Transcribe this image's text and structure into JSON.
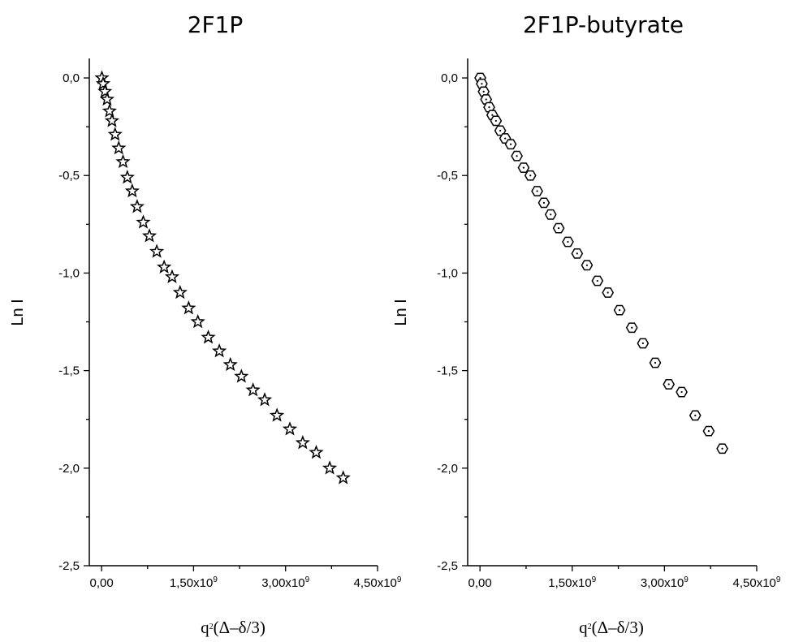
{
  "chart_data": [
    {
      "type": "scatter",
      "title": "2F1P",
      "xlabel_base": "q",
      "xlabel_sup": "2",
      "xlabel_rest": "(Δ–δ/3)",
      "ylabel": "Ln I",
      "xlim": [
        -200000000.0,
        4500000000.0
      ],
      "ylim": [
        -2.5,
        0.1
      ],
      "marker": "star",
      "x_ticks": [
        {
          "value": 0,
          "mantissa": "0,00",
          "exp": ""
        },
        {
          "value": 1500000000.0,
          "mantissa": "1,50x10",
          "exp": "9"
        },
        {
          "value": 3000000000.0,
          "mantissa": "3,00x10",
          "exp": "9"
        },
        {
          "value": 4500000000.0,
          "mantissa": "4,50x10",
          "exp": "9"
        }
      ],
      "y_ticks": [
        {
          "value": 0.0,
          "label": "0,0"
        },
        {
          "value": -0.5,
          "label": "-0,5"
        },
        {
          "value": -1.0,
          "label": "-1,0"
        },
        {
          "value": -1.5,
          "label": "-1,5"
        },
        {
          "value": -2.0,
          "label": "-2,0"
        },
        {
          "value": -2.5,
          "label": "-2,5"
        }
      ],
      "x": [
        5000000.0,
        25000000.0,
        55000000.0,
        90000000.0,
        130000000.0,
        170000000.0,
        220000000.0,
        280000000.0,
        350000000.0,
        420000000.0,
        500000000.0,
        580000000.0,
        680000000.0,
        780000000.0,
        900000000.0,
        1020000000.0,
        1150000000.0,
        1280000000.0,
        1420000000.0,
        1570000000.0,
        1740000000.0,
        1920000000.0,
        2100000000.0,
        2280000000.0,
        2470000000.0,
        2660000000.0,
        2860000000.0,
        3070000000.0,
        3280000000.0,
        3500000000.0,
        3720000000.0,
        3940000000.0
      ],
      "y": [
        0.0,
        -0.03,
        -0.07,
        -0.11,
        -0.17,
        -0.22,
        -0.29,
        -0.36,
        -0.43,
        -0.51,
        -0.58,
        -0.66,
        -0.74,
        -0.81,
        -0.89,
        -0.97,
        -1.02,
        -1.1,
        -1.18,
        -1.25,
        -1.33,
        -1.4,
        -1.47,
        -1.53,
        -1.6,
        -1.65,
        -1.73,
        -1.8,
        -1.87,
        -1.92,
        -2.0,
        -2.05
      ]
    },
    {
      "type": "scatter",
      "title": "2F1P-butyrate",
      "xlabel_base": "q",
      "xlabel_sup": "2",
      "xlabel_rest": "(Δ–δ/3)",
      "ylabel": "Ln I",
      "xlim": [
        -200000000.0,
        4500000000.0
      ],
      "ylim": [
        -2.5,
        0.1
      ],
      "marker": "hexagon",
      "x_ticks": [
        {
          "value": 0,
          "mantissa": "0,00",
          "exp": ""
        },
        {
          "value": 1500000000.0,
          "mantissa": "1,50x10",
          "exp": "9"
        },
        {
          "value": 3000000000.0,
          "mantissa": "3,00x10",
          "exp": "9"
        },
        {
          "value": 4500000000.0,
          "mantissa": "4,50x10",
          "exp": "9"
        }
      ],
      "y_ticks": [
        {
          "value": 0.0,
          "label": "0,0"
        },
        {
          "value": -0.5,
          "label": "-0,5"
        },
        {
          "value": -1.0,
          "label": "-1,0"
        },
        {
          "value": -1.5,
          "label": "-1,5"
        },
        {
          "value": -2.0,
          "label": "-2,0"
        },
        {
          "value": -2.5,
          "label": "-2,5"
        }
      ],
      "x": [
        5000000.0,
        30000000.0,
        60000000.0,
        100000000.0,
        150000000.0,
        200000000.0,
        260000000.0,
        330000000.0,
        410000000.0,
        500000000.0,
        600000000.0,
        710000000.0,
        820000000.0,
        930000000.0,
        1040000000.0,
        1150000000.0,
        1280000000.0,
        1430000000.0,
        1580000000.0,
        1740000000.0,
        1910000000.0,
        2080000000.0,
        2270000000.0,
        2470000000.0,
        2650000000.0,
        2850000000.0,
        3070000000.0,
        3280000000.0,
        3500000000.0,
        3720000000.0,
        3940000000.0
      ],
      "y": [
        0.0,
        -0.03,
        -0.07,
        -0.11,
        -0.15,
        -0.19,
        -0.22,
        -0.27,
        -0.31,
        -0.34,
        -0.4,
        -0.46,
        -0.5,
        -0.58,
        -0.64,
        -0.7,
        -0.77,
        -0.84,
        -0.9,
        -0.96,
        -1.04,
        -1.1,
        -1.19,
        -1.28,
        -1.36,
        -1.46,
        -1.57,
        -1.61,
        -1.73,
        -1.81,
        -1.9
      ]
    }
  ]
}
